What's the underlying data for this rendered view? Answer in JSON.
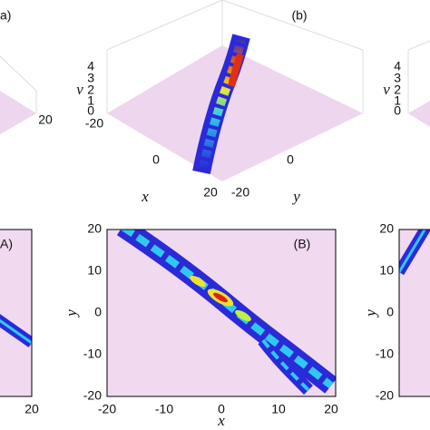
{
  "panels": [
    {
      "label": "a)",
      "x_ticks": [
        "20"
      ]
    },
    {
      "label": "(b)",
      "z_axis": "v",
      "z_ticks": [
        "4",
        "3",
        "2",
        "1",
        "0"
      ],
      "x_axis": "x",
      "x_ticks": [
        "-20",
        "0",
        "20"
      ],
      "y_axis": "y",
      "y_ticks": [
        "-20",
        "0"
      ]
    },
    {
      "z_axis": "v",
      "z_ticks": [
        "4",
        "3",
        "2",
        "1",
        "0"
      ]
    },
    {
      "label": "A)",
      "x_ticks": [
        "20"
      ]
    },
    {
      "label": "(B)",
      "x_axis": "x",
      "x_ticks": [
        "-20",
        "-10",
        "0",
        "10",
        "20"
      ],
      "y_axis": "y",
      "y_ticks": [
        "20",
        "10",
        "0",
        "-10",
        "-20"
      ]
    },
    {
      "y_axis": "y",
      "y_ticks": [
        "20",
        "10",
        "0",
        "-10",
        "-20"
      ]
    }
  ]
}
